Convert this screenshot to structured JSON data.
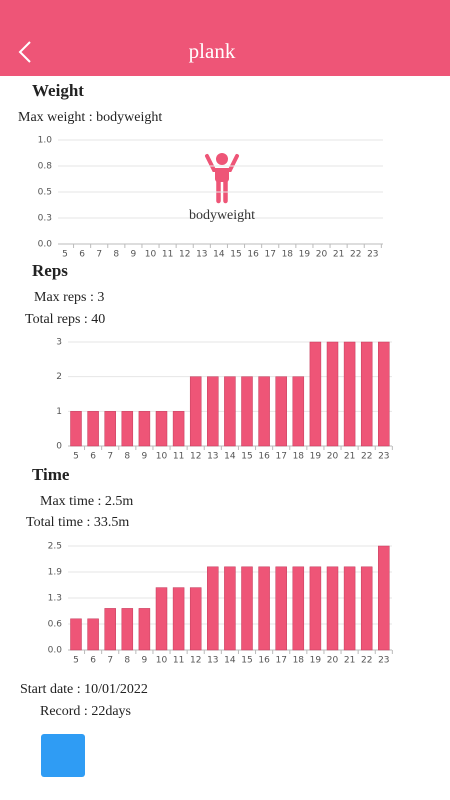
{
  "header": {
    "title": "plank"
  },
  "weight": {
    "heading": "Weight",
    "max": "Max weight : bodyweight"
  },
  "reps": {
    "heading": "Reps",
    "max": "Max reps : 3",
    "total": "Total reps : 40"
  },
  "time": {
    "heading": "Time",
    "max": "Max time : 2.5m",
    "total": "Total time : 33.5m"
  },
  "footer": {
    "start": "Start date : 10/01/2022",
    "record": "Record : 22days"
  },
  "chart_data": [
    {
      "type": "bar",
      "annotation": "bodyweight",
      "categories": [
        "5",
        "6",
        "7",
        "8",
        "9",
        "10",
        "11",
        "12",
        "13",
        "14",
        "15",
        "16",
        "17",
        "18",
        "19",
        "20",
        "21",
        "22",
        "23"
      ],
      "ylim": [
        0,
        1
      ],
      "yticks": [
        {
          "value": 0,
          "label": "0.0"
        },
        {
          "value": 0.25,
          "label": "0.3"
        },
        {
          "value": 0.5,
          "label": "0.5"
        },
        {
          "value": 0.75,
          "label": "0.8"
        },
        {
          "value": 1,
          "label": "1.0"
        }
      ],
      "grid": true,
      "color": "#ee5577"
    },
    {
      "type": "bar",
      "categories": [
        "5",
        "6",
        "7",
        "8",
        "9",
        "10",
        "11",
        "12",
        "13",
        "14",
        "15",
        "16",
        "17",
        "18",
        "19",
        "20",
        "21",
        "22",
        "23"
      ],
      "values": [
        1,
        1,
        1,
        1,
        1,
        1,
        1,
        2,
        2,
        2,
        2,
        2,
        2,
        2,
        3,
        3,
        3,
        3,
        3
      ],
      "ylim": [
        0,
        3
      ],
      "yticks": [
        0,
        1,
        2,
        3
      ],
      "grid": true,
      "color": "#ee5577"
    },
    {
      "type": "bar",
      "categories": [
        "5",
        "6",
        "7",
        "8",
        "9",
        "10",
        "11",
        "12",
        "13",
        "14",
        "15",
        "16",
        "17",
        "18",
        "19",
        "20",
        "21",
        "22",
        "23"
      ],
      "values": [
        0.75,
        0.75,
        1,
        1,
        1,
        1.5,
        1.5,
        1.5,
        2,
        2,
        2,
        2,
        2,
        2,
        2,
        2,
        2,
        2,
        2.5
      ],
      "ylim": [
        0,
        2.5
      ],
      "yticks": [
        {
          "value": 0,
          "label": "0.0"
        },
        {
          "value": 0.625,
          "label": "0.6"
        },
        {
          "value": 1.25,
          "label": "1.3"
        },
        {
          "value": 1.875,
          "label": "1.9"
        },
        {
          "value": 2.5,
          "label": "2.5"
        }
      ],
      "grid": true,
      "color": "#ee5577"
    }
  ]
}
